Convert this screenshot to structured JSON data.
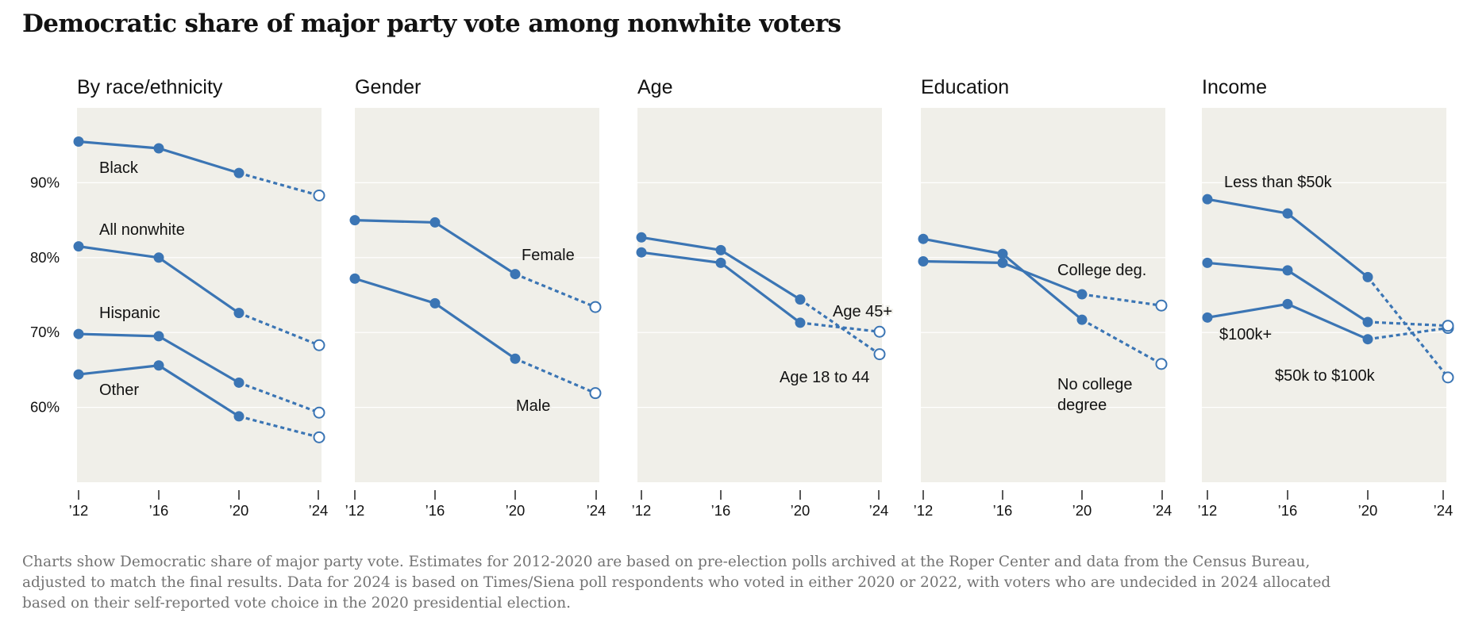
{
  "title": "Democratic share of major party vote among nonwhite voters",
  "colors": {
    "line": "#3b75b4",
    "panel_background": "#f0efe9",
    "gridline": "#ffffff",
    "text": "#121212",
    "note": "#737373"
  },
  "note_lines": [
    "Charts show Democratic share of major party vote. Estimates for 2012-2020 are based on pre-election polls archived at the Roper Center and data from the Census Bureau,",
    "adjusted to match the final results. Data for 2024 is based on Times/Siena poll respondents who voted in either 2020 or 2022, with voters who are undecided in 2024 allocated",
    "based on their self-reported vote choice in the 2020 presidential election."
  ],
  "chart_data": [
    {
      "type": "line",
      "title": "By race/ethnicity",
      "x": [
        2012,
        2016,
        2020,
        2024
      ],
      "x_tick_labels": [
        "’12",
        "’16",
        "’20",
        "’24"
      ],
      "y_tick_labels": [
        "90%",
        "80%",
        "70%",
        "60%"
      ],
      "y_ticks": [
        90,
        80,
        70,
        60
      ],
      "ylim": [
        50,
        100
      ],
      "grid": true,
      "projection_note": "2024 segment drawn dashed with hollow marker",
      "series": [
        {
          "name": "Black",
          "values": [
            95.5,
            94.6,
            91.3,
            88.3
          ]
        },
        {
          "name": "All nonwhite",
          "values": [
            81.5,
            80.0,
            72.6,
            68.3
          ]
        },
        {
          "name": "Hispanic",
          "values": [
            69.8,
            69.5,
            63.3,
            59.3
          ]
        },
        {
          "name": "Other",
          "values": [
            64.4,
            65.6,
            58.8,
            56.0
          ]
        }
      ]
    },
    {
      "type": "line",
      "title": "Gender",
      "x": [
        2012,
        2016,
        2020,
        2024
      ],
      "x_tick_labels": [
        "’12",
        "’16",
        "’20",
        "’24"
      ],
      "ylim": [
        50,
        100
      ],
      "grid": true,
      "series": [
        {
          "name": "Female",
          "values": [
            85.0,
            84.7,
            77.8,
            73.4
          ]
        },
        {
          "name": "Male",
          "values": [
            77.2,
            73.9,
            66.5,
            61.9
          ]
        }
      ]
    },
    {
      "type": "line",
      "title": "Age",
      "x": [
        2012,
        2016,
        2020,
        2024
      ],
      "x_tick_labels": [
        "’12",
        "’16",
        "’20",
        "’24"
      ],
      "ylim": [
        50,
        100
      ],
      "grid": true,
      "series": [
        {
          "name": "Age 45+",
          "values": [
            82.7,
            81.0,
            74.4,
            67.1
          ]
        },
        {
          "name": "Age 18 to 44",
          "values": [
            80.7,
            79.3,
            71.3,
            70.1
          ]
        }
      ]
    },
    {
      "type": "line",
      "title": "Education",
      "x": [
        2012,
        2016,
        2020,
        2024
      ],
      "x_tick_labels": [
        "’12",
        "’16",
        "’20",
        "’24"
      ],
      "ylim": [
        50,
        100
      ],
      "grid": true,
      "series": [
        {
          "name": "College deg.",
          "values": [
            79.5,
            79.3,
            75.1,
            73.6
          ]
        },
        {
          "name": "No college degree",
          "values": [
            82.5,
            80.5,
            71.7,
            65.8
          ]
        }
      ]
    },
    {
      "type": "line",
      "title": "Income",
      "x": [
        2012,
        2016,
        2020,
        2024
      ],
      "x_tick_labels": [
        "’12",
        "’16",
        "’20",
        "’24"
      ],
      "ylim": [
        50,
        100
      ],
      "grid": true,
      "series": [
        {
          "name": "Less than $50k",
          "values": [
            87.8,
            85.9,
            77.4,
            64.0
          ]
        },
        {
          "name": "$100k+",
          "values": [
            72.0,
            73.8,
            69.1,
            70.6
          ]
        },
        {
          "name": "$50k to $100k",
          "values": [
            79.3,
            78.3,
            71.4,
            70.9
          ]
        }
      ]
    }
  ]
}
